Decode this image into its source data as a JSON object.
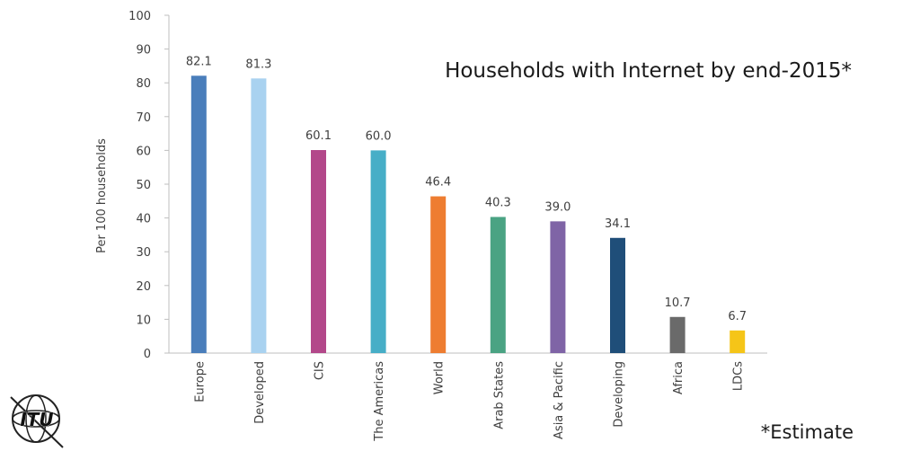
{
  "chart_data": {
    "type": "bar",
    "title": "Households with Internet by end-2015*",
    "ylabel": "Per 100 households",
    "xlabel": "",
    "ylim": [
      0,
      100
    ],
    "yticks": [
      0,
      10,
      20,
      30,
      40,
      50,
      60,
      70,
      80,
      90,
      100
    ],
    "grid": false,
    "categories": [
      "Europe",
      "Developed",
      "CIS",
      "The Americas",
      "World",
      "Arab States",
      "Asia & Pacific",
      "Developing",
      "Africa",
      "LDCs"
    ],
    "values": [
      82.1,
      81.3,
      60.1,
      60.0,
      46.4,
      40.3,
      39.0,
      34.1,
      10.7,
      6.7
    ],
    "data_labels": [
      "82.1",
      "81.3",
      "60.1",
      "60.0",
      "46.4",
      "40.3",
      "39.0",
      "34.1",
      "10.7",
      "6.7"
    ],
    "colors": [
      "#4a7ebb",
      "#a9d2f0",
      "#b3488a",
      "#47aec7",
      "#ee7d31",
      "#4aa383",
      "#7f64a6",
      "#1f4e79",
      "#6a6a6a",
      "#f5c518"
    ],
    "footnote": "*Estimate"
  },
  "logo": {
    "text": "ITU",
    "icon": "itu-globe-logo-icon"
  }
}
